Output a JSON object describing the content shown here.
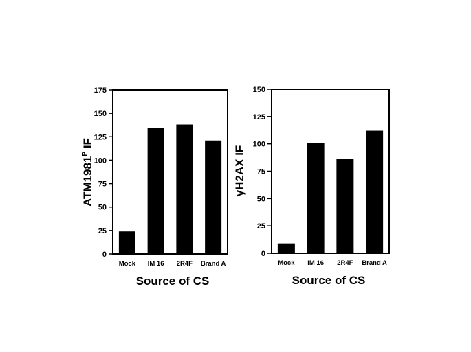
{
  "chart_data": [
    {
      "type": "bar",
      "title": "",
      "xlabel": "Source of CS",
      "ylabel": "ATM1981",
      "ylabel_sup": "P",
      "ylabel_suffix": " IF",
      "categories": [
        "Mock",
        "IM 16",
        "2R4F",
        "Brand A"
      ],
      "values": [
        24,
        134,
        138,
        121
      ],
      "ylim": [
        0,
        175
      ],
      "yticks": [
        "0",
        "25",
        "50",
        "75",
        "100",
        "125",
        "150",
        "175"
      ],
      "grid": false,
      "color": "#000000"
    },
    {
      "type": "bar",
      "title": "",
      "xlabel": "Source of CS",
      "ylabel": "γH2AX IF",
      "categories": [
        "Mock",
        "IM 16",
        "2R4F",
        "Brand A"
      ],
      "values": [
        9,
        101,
        86,
        112
      ],
      "ylim": [
        0,
        150
      ],
      "yticks": [
        "0",
        "25",
        "50",
        "75",
        "100",
        "125",
        "150"
      ],
      "grid": false,
      "color": "#000000"
    }
  ]
}
